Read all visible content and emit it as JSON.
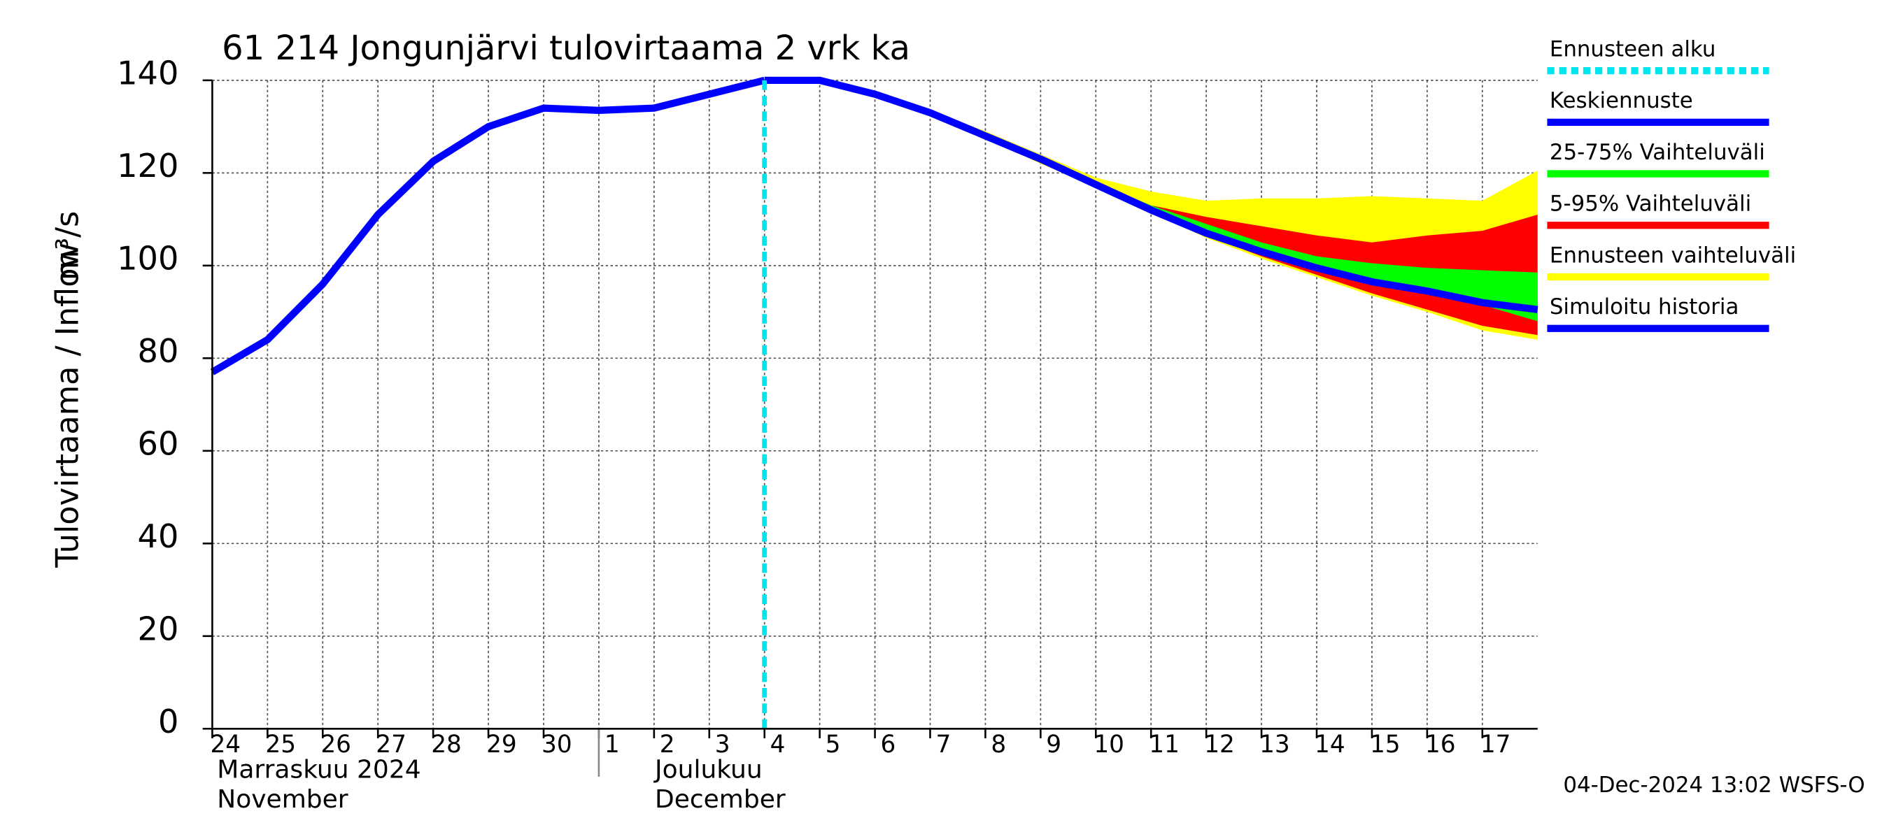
{
  "chart_data": {
    "type": "line",
    "title": "61 214 Jongunjärvi tulovirtaama 2 vrk ka",
    "y_label": "Tulovirtaama / Inflow",
    "y_unit": "m³/s",
    "month_labels": [
      "Marraskuu 2024",
      "November",
      "Joulukuu",
      "December"
    ],
    "footer": "04-Dec-2024 13:02 WSFS-O",
    "grid": true,
    "x": [
      "2024-11-24",
      "2024-11-25",
      "2024-11-26",
      "2024-11-27",
      "2024-11-28",
      "2024-11-29",
      "2024-11-30",
      "2024-12-01",
      "2024-12-02",
      "2024-12-03",
      "2024-12-04",
      "2024-12-05",
      "2024-12-06",
      "2024-12-07",
      "2024-12-08",
      "2024-12-09",
      "2024-12-10",
      "2024-12-11",
      "2024-12-12",
      "2024-12-13",
      "2024-12-14",
      "2024-12-15",
      "2024-12-16",
      "2024-12-17",
      "2024-12-18"
    ],
    "xlim": [
      "2024-11-24",
      "2024-12-18"
    ],
    "xticks": [
      {
        "value": "2024-11-24",
        "label": "24"
      },
      {
        "value": "2024-11-25",
        "label": "25"
      },
      {
        "value": "2024-11-26",
        "label": "26"
      },
      {
        "value": "2024-11-27",
        "label": "27"
      },
      {
        "value": "2024-11-28",
        "label": "28"
      },
      {
        "value": "2024-11-29",
        "label": "29"
      },
      {
        "value": "2024-11-30",
        "label": "30"
      },
      {
        "value": "2024-12-01",
        "label": "1"
      },
      {
        "value": "2024-12-02",
        "label": "2"
      },
      {
        "value": "2024-12-03",
        "label": "3"
      },
      {
        "value": "2024-12-04",
        "label": "4"
      },
      {
        "value": "2024-12-05",
        "label": "5"
      },
      {
        "value": "2024-12-06",
        "label": "6"
      },
      {
        "value": "2024-12-07",
        "label": "7"
      },
      {
        "value": "2024-12-08",
        "label": "8"
      },
      {
        "value": "2024-12-09",
        "label": "9"
      },
      {
        "value": "2024-12-10",
        "label": "10"
      },
      {
        "value": "2024-12-11",
        "label": "11"
      },
      {
        "value": "2024-12-12",
        "label": "12"
      },
      {
        "value": "2024-12-13",
        "label": "13"
      },
      {
        "value": "2024-12-14",
        "label": "14"
      },
      {
        "value": "2024-12-15",
        "label": "15"
      },
      {
        "value": "2024-12-16",
        "label": "16"
      },
      {
        "value": "2024-12-17",
        "label": "17"
      }
    ],
    "ylim": [
      0,
      140
    ],
    "yticks": [
      0,
      20,
      40,
      60,
      80,
      100,
      120,
      140
    ],
    "forecast_start": {
      "name": "Ennusteen alku",
      "color": "#00e5ee",
      "x": "2024-12-04"
    },
    "bands": [
      {
        "name": "Ennusteen vaihteluväli",
        "color": "#ffff00",
        "low": [
          null,
          null,
          null,
          null,
          null,
          null,
          null,
          null,
          null,
          null,
          140,
          140,
          137,
          133,
          127.5,
          122,
          117,
          111.5,
          106,
          101.5,
          97.5,
          93.5,
          90,
          86,
          84
        ],
        "high": [
          null,
          null,
          null,
          null,
          null,
          null,
          null,
          null,
          null,
          null,
          140,
          140,
          137,
          133.5,
          129,
          124,
          119,
          116,
          114,
          114.5,
          114.5,
          115,
          114.5,
          114,
          120.5
        ]
      },
      {
        "name": "5-95% Vaihteluväli",
        "color": "#ff0000",
        "low": [
          null,
          null,
          null,
          null,
          null,
          null,
          null,
          null,
          null,
          null,
          140,
          140,
          137,
          133,
          128,
          122.5,
          117.5,
          111.5,
          106.5,
          102,
          98,
          94,
          90.5,
          87,
          85
        ],
        "high": [
          null,
          null,
          null,
          null,
          null,
          null,
          null,
          null,
          null,
          null,
          140,
          140,
          137,
          133,
          128,
          123,
          118,
          113,
          110.5,
          108.5,
          106.5,
          105,
          106.5,
          107.5,
          111
        ]
      },
      {
        "name": "25-75% Vaihteluväli",
        "color": "#00ff00",
        "low": [
          null,
          null,
          null,
          null,
          null,
          null,
          null,
          null,
          null,
          null,
          140,
          140,
          137,
          133,
          128,
          123,
          117.5,
          112,
          107,
          103,
          99.5,
          96.5,
          94,
          91.5,
          88
        ],
        "high": [
          null,
          null,
          null,
          null,
          null,
          null,
          null,
          null,
          null,
          null,
          140,
          140,
          137,
          133,
          128,
          123,
          118,
          113,
          109,
          105,
          102,
          100.5,
          99.5,
          99,
          98.5
        ]
      }
    ],
    "series": [
      {
        "name": "Keskiennuste",
        "color": "#0000ff",
        "values": [
          null,
          null,
          null,
          null,
          null,
          null,
          null,
          null,
          null,
          null,
          140,
          140,
          137,
          133,
          128,
          123,
          117.5,
          112,
          107,
          103,
          99.5,
          96.5,
          94.5,
          92,
          90.5
        ]
      },
      {
        "name": "Simuloitu historia",
        "color": "#0000ff",
        "values": [
          77,
          84,
          96,
          111,
          122.5,
          130,
          134,
          133.5,
          134,
          137,
          140,
          null,
          null,
          null,
          null,
          null,
          null,
          null,
          null,
          null,
          null,
          null,
          null,
          null,
          null
        ]
      }
    ]
  }
}
